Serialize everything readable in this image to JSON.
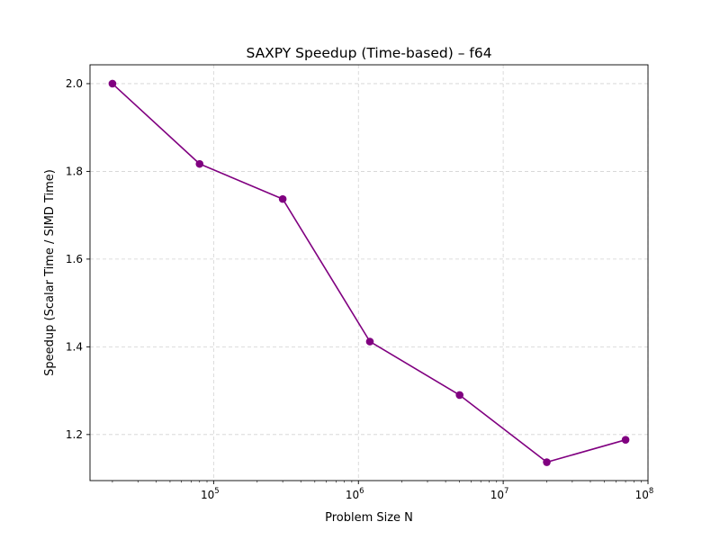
{
  "chart_data": {
    "type": "line",
    "title": "SAXPY Speedup (Time-based) – f64",
    "xlabel": "Problem Size N",
    "ylabel": "Speedup (Scalar Time / SIMD Time)",
    "xscale": "log",
    "xlim": [
      14000,
      100000000
    ],
    "ylim": [
      1.095,
      2.043
    ],
    "grid": true,
    "x_ticks": [
      {
        "base": "10",
        "exp": "5",
        "value": 100000
      },
      {
        "base": "10",
        "exp": "6",
        "value": 1000000
      },
      {
        "base": "10",
        "exp": "7",
        "value": 10000000
      },
      {
        "base": "10",
        "exp": "8",
        "value": 100000000
      }
    ],
    "y_ticks": [
      {
        "label": "1.2",
        "value": 1.2
      },
      {
        "label": "1.4",
        "value": 1.4
      },
      {
        "label": "1.6",
        "value": 1.6
      },
      {
        "label": "1.8",
        "value": 1.8
      },
      {
        "label": "2.0",
        "value": 2.0
      }
    ],
    "series": [
      {
        "name": "f64",
        "color": "#800080",
        "x": [
          20000,
          80000,
          300000,
          1200000,
          5000000,
          20000000,
          70000000
        ],
        "values": [
          2.0,
          1.817,
          1.737,
          1.412,
          1.29,
          1.137,
          1.188
        ]
      }
    ]
  }
}
